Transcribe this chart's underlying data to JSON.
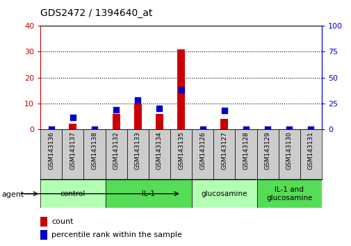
{
  "title": "GDS2472 / 1394640_at",
  "samples": [
    "GSM143136",
    "GSM143137",
    "GSM143138",
    "GSM143132",
    "GSM143133",
    "GSM143134",
    "GSM143135",
    "GSM143126",
    "GSM143127",
    "GSM143128",
    "GSM143129",
    "GSM143130",
    "GSM143131"
  ],
  "counts": [
    0,
    2,
    0,
    6,
    10,
    6,
    31,
    0,
    4,
    0,
    0,
    0,
    0
  ],
  "percentile_ranks": [
    0,
    11,
    0,
    19,
    28,
    20,
    38,
    0,
    18,
    0,
    0,
    0,
    0
  ],
  "groups": [
    {
      "label": "control",
      "indices": [
        0,
        1,
        2
      ],
      "color": "#b3ffb3"
    },
    {
      "label": "IL-1",
      "indices": [
        3,
        4,
        5,
        6
      ],
      "color": "#55dd55"
    },
    {
      "label": "glucosamine",
      "indices": [
        7,
        8,
        9
      ],
      "color": "#b3ffb3"
    },
    {
      "label": "IL-1 and\nglucosamine",
      "indices": [
        10,
        11,
        12
      ],
      "color": "#55dd55"
    }
  ],
  "ylim_left": [
    0,
    40
  ],
  "ylim_right": [
    0,
    100
  ],
  "yticks_left": [
    0,
    10,
    20,
    30,
    40
  ],
  "yticks_right": [
    0,
    25,
    50,
    75,
    100
  ],
  "bar_color": "#cc0000",
  "dot_color": "#0000cc",
  "left_axis_color": "#cc0000",
  "right_axis_color": "#0000cc",
  "bar_width": 0.35,
  "dot_size": 28,
  "sample_box_color": "#cccccc",
  "grid_color": "black",
  "grid_linestyle": ":",
  "grid_linewidth": 0.8
}
